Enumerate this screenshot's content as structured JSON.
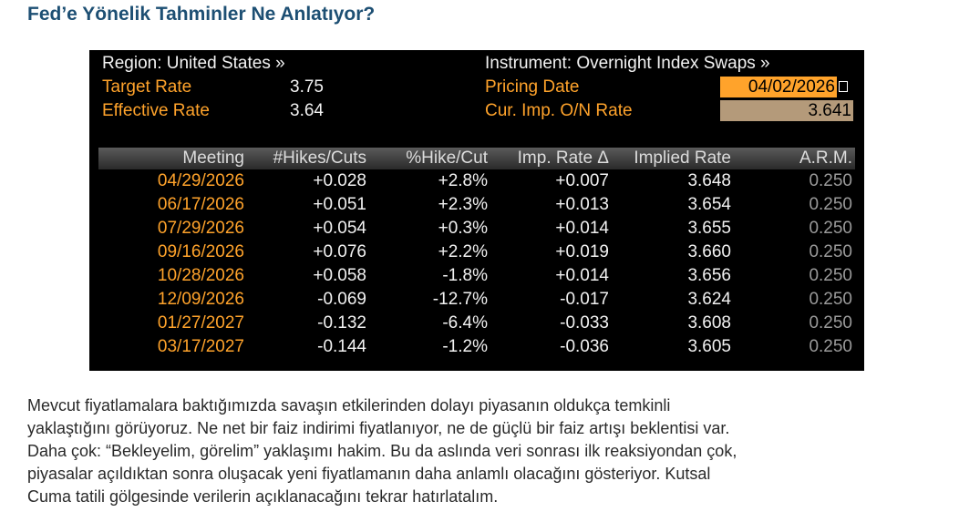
{
  "title": "Fed’e Yönelik Tahminler Ne Anlatıyor?",
  "terminal": {
    "region": "Region: United States »",
    "target_rate": {
      "label": "Target Rate",
      "value": "3.75"
    },
    "effective_rate": {
      "label": "Effective Rate",
      "value": "3.64"
    },
    "instrument": "Instrument: Overnight Index Swaps »",
    "pricing_date": {
      "label": "Pricing Date",
      "value": "04/02/2026"
    },
    "cur_imp_rate": {
      "label": "Cur. Imp. O/N Rate",
      "value": "3.641"
    }
  },
  "table": {
    "columns": [
      "Meeting",
      "#Hikes/Cuts",
      "%Hike/Cut",
      "Imp. Rate Δ",
      "Implied Rate",
      "A.R.M."
    ],
    "rows": [
      [
        "04/29/2026",
        "+0.028",
        "+2.8%",
        "+0.007",
        "3.648",
        "0.250"
      ],
      [
        "06/17/2026",
        "+0.051",
        "+2.3%",
        "+0.013",
        "3.654",
        "0.250"
      ],
      [
        "07/29/2026",
        "+0.054",
        "+0.3%",
        "+0.014",
        "3.655",
        "0.250"
      ],
      [
        "09/16/2026",
        "+0.076",
        "+2.2%",
        "+0.019",
        "3.660",
        "0.250"
      ],
      [
        "10/28/2026",
        "+0.058",
        "-1.8%",
        "+0.014",
        "3.656",
        "0.250"
      ],
      [
        "12/09/2026",
        "-0.069",
        "-12.7%",
        "-0.017",
        "3.624",
        "0.250"
      ],
      [
        "01/27/2027",
        "-0.132",
        "-6.4%",
        "-0.033",
        "3.608",
        "0.250"
      ],
      [
        "03/17/2027",
        "-0.144",
        "-1.2%",
        "-0.036",
        "3.605",
        "0.250"
      ]
    ]
  },
  "paragraph": {
    "lines": [
      "Mevcut fiyatlamalara baktığımızda savaşın etkilerinden dolayı piyasanın oldukça temkinli",
      "yaklaştığını görüyoruz. Ne net bir faiz indirimi fiyatlanıyor, ne de güçlü bir faiz artışı beklentisi var.",
      "Daha çok: “Bekleyelim, görelim” yaklaşımı hakim. Bu da aslında veri sonrası ilk reaksiyondan çok,",
      "piyasalar açıldıktan sonra oluşacak yeni fiyatlamanın daha anlamlı olacağını gösteriyor. Kutsal",
      "Cuma tatili gölgesinde verilerin açıklanacağını tekrar hatırlatalım."
    ]
  }
}
